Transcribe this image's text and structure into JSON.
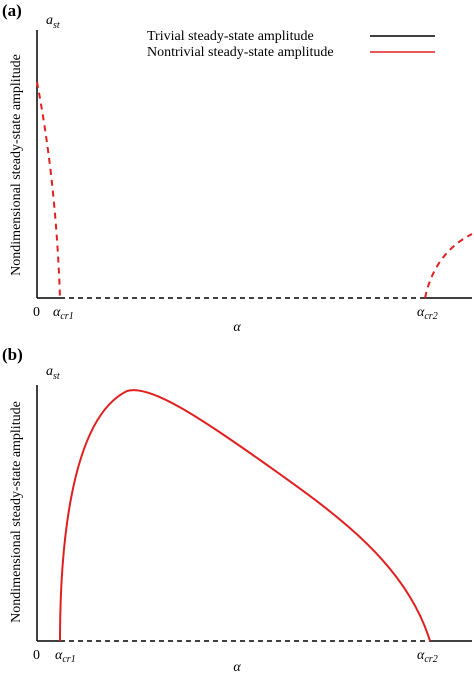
{
  "panels": [
    {
      "label": "(a)",
      "y_symbol": {
        "base": "a",
        "sub": "st"
      },
      "y_label": "Nondimensional steady-state amplitude",
      "x_label": "α",
      "origin": "0",
      "x_marks": [
        {
          "base": "α",
          "sub": "cr1"
        },
        {
          "base": "α",
          "sub": "cr2"
        }
      ],
      "legend": [
        "Trivial steady-state amplitude",
        "Nontrivial steady-state amplitude"
      ]
    },
    {
      "label": "(b)",
      "y_symbol": {
        "base": "a",
        "sub": "st"
      },
      "y_label": "Nondimensional steady-state amplitude",
      "x_label": "α",
      "origin": "0",
      "x_marks": [
        {
          "base": "α",
          "sub": "cr1"
        },
        {
          "base": "α",
          "sub": "cr2"
        }
      ]
    }
  ]
}
